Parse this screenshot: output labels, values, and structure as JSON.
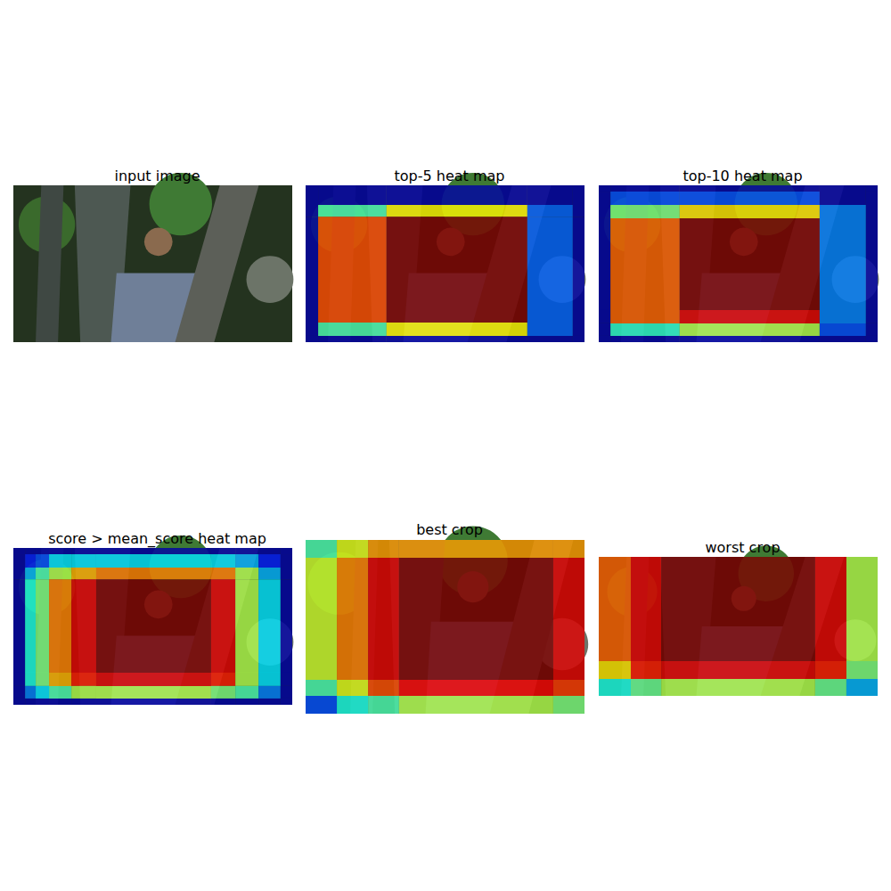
{
  "chart_data": [
    {
      "type": "image",
      "title": "input image"
    },
    {
      "type": "heatmap",
      "title": "top-5 heat map",
      "tick_labels": false,
      "xlim": [
        0,
        1
      ],
      "ylim": [
        0,
        1
      ],
      "color_range": [
        0,
        1
      ],
      "x_edges": [
        0,
        0.045,
        0.29,
        0.795,
        0.958,
        1
      ],
      "y_edges": [
        0,
        0.125,
        0.2,
        0.875,
        0.96,
        1
      ],
      "cells": [
        [
          0.04,
          0.04,
          0.04,
          0.04,
          0.04
        ],
        [
          0.04,
          0.45,
          0.63,
          0.22,
          0.04
        ],
        [
          0.04,
          0.8,
          1.0,
          0.22,
          0.04
        ],
        [
          0.04,
          0.45,
          0.63,
          0.22,
          0.04
        ],
        [
          0.04,
          0.04,
          0.04,
          0.04,
          0.04
        ]
      ]
    },
    {
      "type": "heatmap",
      "title": "top-10 heat map",
      "tick_labels": false,
      "xlim": [
        0,
        1
      ],
      "ylim": [
        0,
        1
      ],
      "color_range": [
        0,
        1
      ],
      "x_edges": [
        0,
        0.042,
        0.29,
        0.792,
        0.958,
        1
      ],
      "y_edges": [
        0,
        0.04,
        0.125,
        0.21,
        0.795,
        0.88,
        0.96,
        1
      ],
      "cells": [
        [
          0.04,
          0.04,
          0.04,
          0.04,
          0.04
        ],
        [
          0.04,
          0.2,
          0.2,
          0.04,
          0.04
        ],
        [
          0.04,
          0.5,
          0.65,
          0.25,
          0.04
        ],
        [
          0.04,
          0.78,
          1.0,
          0.25,
          0.04
        ],
        [
          0.04,
          0.78,
          0.9,
          0.25,
          0.04
        ],
        [
          0.04,
          0.42,
          0.55,
          0.2,
          0.04
        ],
        [
          0.04,
          0.04,
          0.04,
          0.04,
          0.04
        ]
      ]
    },
    {
      "type": "heatmap",
      "title": "score > mean_score heat map",
      "tick_labels": false,
      "xlim": [
        0,
        1
      ],
      "ylim": [
        0,
        1
      ],
      "color_range": [
        0,
        1
      ],
      "x_edges": [
        0,
        0.042,
        0.08,
        0.128,
        0.208,
        0.297,
        0.709,
        0.796,
        0.879,
        0.958,
        1
      ],
      "y_edges": [
        0,
        0.04,
        0.125,
        0.2,
        0.795,
        0.88,
        0.96,
        1
      ],
      "cells": [
        [
          0.04,
          0.04,
          0.04,
          0.04,
          0.04,
          0.04,
          0.04,
          0.04,
          0.04,
          0.04
        ],
        [
          0.04,
          0.15,
          0.2,
          0.35,
          0.35,
          0.35,
          0.35,
          0.3,
          0.15,
          0.04
        ],
        [
          0.04,
          0.3,
          0.45,
          0.55,
          0.7,
          0.75,
          0.75,
          0.55,
          0.3,
          0.04
        ],
        [
          0.04,
          0.4,
          0.5,
          0.75,
          0.9,
          1.0,
          0.9,
          0.55,
          0.35,
          0.04
        ],
        [
          0.04,
          0.4,
          0.5,
          0.7,
          0.85,
          0.9,
          0.85,
          0.55,
          0.35,
          0.04
        ],
        [
          0.04,
          0.25,
          0.35,
          0.45,
          0.55,
          0.55,
          0.5,
          0.45,
          0.25,
          0.04
        ],
        [
          0.04,
          0.04,
          0.04,
          0.04,
          0.04,
          0.04,
          0.04,
          0.04,
          0.04,
          0.04
        ]
      ]
    },
    {
      "type": "heatmap",
      "title": "best crop",
      "tick_labels": false,
      "xlim": [
        0,
        1
      ],
      "ylim": [
        0,
        1
      ],
      "color_range": [
        0,
        1
      ],
      "x_edges": [
        0,
        0.112,
        0.224,
        0.335,
        0.888,
        1
      ],
      "y_edges": [
        0,
        0.103,
        0.805,
        0.897,
        1
      ],
      "cells": [
        [
          0.45,
          0.6,
          0.72,
          0.72,
          0.72
        ],
        [
          0.58,
          0.75,
          0.9,
          1.0,
          0.9
        ],
        [
          0.45,
          0.6,
          0.8,
          0.88,
          0.82
        ],
        [
          0.2,
          0.4,
          0.45,
          0.55,
          0.5
        ]
      ]
    },
    {
      "type": "heatmap",
      "title": "worst crop",
      "tick_labels": false,
      "xlim": [
        0,
        1
      ],
      "ylim": [
        0,
        1
      ],
      "color_range": [
        0,
        1
      ],
      "x_edges": [
        0,
        0.115,
        0.224,
        0.776,
        0.888,
        1
      ],
      "y_edges": [
        0,
        0.75,
        0.878,
        1
      ],
      "cells": [
        [
          0.78,
          0.9,
          1.0,
          0.9,
          0.55
        ],
        [
          0.65,
          0.85,
          0.9,
          0.85,
          0.5
        ],
        [
          0.4,
          0.48,
          0.55,
          0.48,
          0.3
        ]
      ]
    }
  ]
}
